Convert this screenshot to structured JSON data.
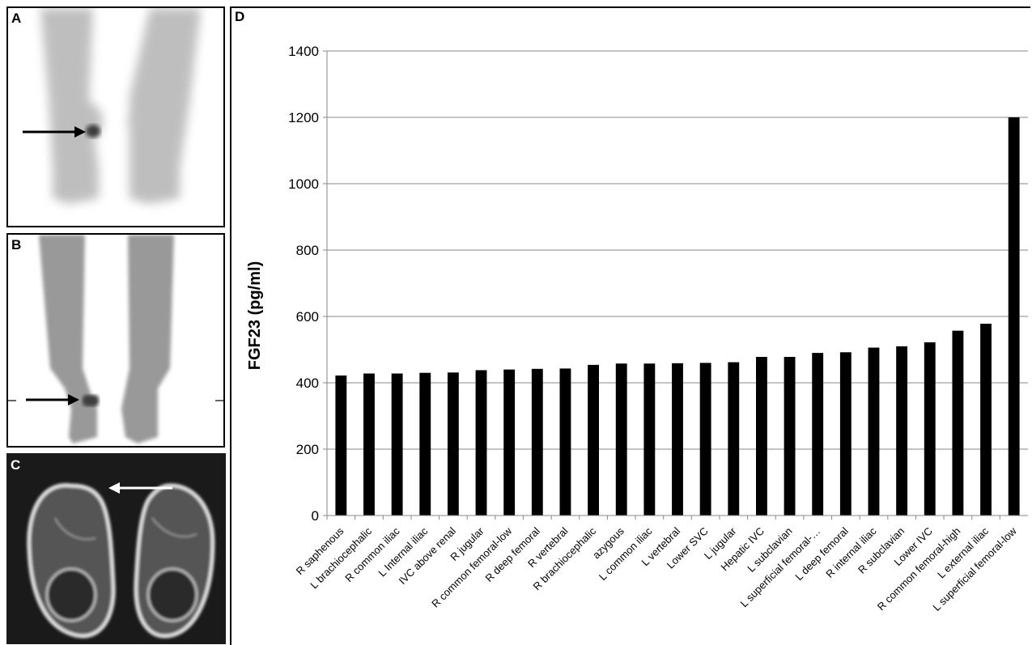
{
  "panels": {
    "a": {
      "label": "A"
    },
    "b": {
      "label": "B"
    },
    "c": {
      "label": "C"
    },
    "d": {
      "label": "D"
    }
  },
  "colors": {
    "bar": "#000000",
    "axis": "#888888",
    "grid": "#888888",
    "scan_bg": "#1a1a1a"
  },
  "icons": {
    "arrow_a": "arrow-right-icon",
    "arrow_b": "arrow-right-icon",
    "arrow_c": "arrow-left-icon"
  },
  "chart_data": {
    "type": "bar",
    "title": "",
    "xlabel": "",
    "ylabel": "FGF23 (pg/ml)",
    "ylim": [
      0,
      1400
    ],
    "yticks": [
      0,
      200,
      400,
      600,
      800,
      1000,
      1200,
      1400
    ],
    "grid": true,
    "legend": "none",
    "categories": [
      "R saphenous",
      "L brachiocephalic",
      "R common iliac",
      "L Internal iliac",
      "IVC above renal",
      "R jugular",
      "R common femoral-low",
      "R deep femoral",
      "R vertebral",
      "R brachiocephalic",
      "azygous",
      "L common iliac",
      "L vertebral",
      "Lower SVC",
      "L jugular",
      "Hepatic IVC",
      "L subclavian",
      "L superficial femoral-…",
      "L deep femoral",
      "R internal iliac",
      "R subclavian",
      "Lower IVC",
      "R common femoral-high",
      "L external iliac",
      "L superficial femoral-low"
    ],
    "values": [
      422,
      428,
      428,
      430,
      431,
      438,
      440,
      442,
      443,
      454,
      458,
      458,
      459,
      460,
      462,
      478,
      478,
      490,
      492,
      506,
      510,
      522,
      557,
      578,
      1200
    ]
  }
}
